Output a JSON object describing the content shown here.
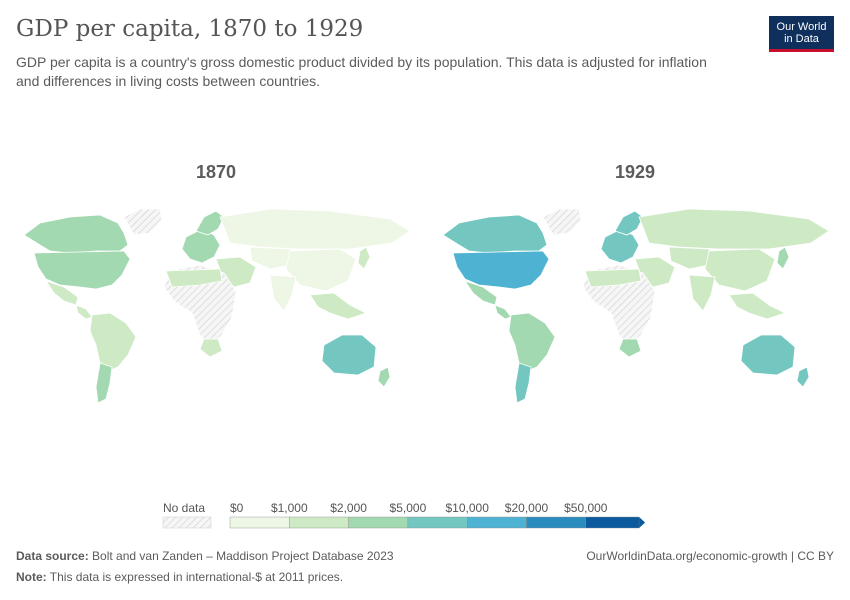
{
  "title": "GDP per capita, 1870 to 1929",
  "subtitle": "GDP per capita is a country's gross domestic product divided by its population. This data is adjusted for inflation and differences in living costs between countries.",
  "logo": {
    "line1": "Our World",
    "line2": "in Data"
  },
  "maps": [
    {
      "year": "1870",
      "regions": [
        {
          "name": "North America",
          "bin": 2
        },
        {
          "name": "USA",
          "bin": 2
        },
        {
          "name": "Mexico",
          "bin": 1
        },
        {
          "name": "Central America",
          "bin": 1
        },
        {
          "name": "South America",
          "bin": 1
        },
        {
          "name": "Argentina",
          "bin": 2
        },
        {
          "name": "Greenland",
          "bin": -1
        },
        {
          "name": "Western Europe",
          "bin": 2
        },
        {
          "name": "Scandinavia",
          "bin": 2
        },
        {
          "name": "Russia",
          "bin": 0
        },
        {
          "name": "Middle East",
          "bin": 1
        },
        {
          "name": "Africa",
          "bin": -1
        },
        {
          "name": "North Africa",
          "bin": 1
        },
        {
          "name": "South Africa",
          "bin": 1
        },
        {
          "name": "Central Asia",
          "bin": 0
        },
        {
          "name": "China",
          "bin": 0
        },
        {
          "name": "India",
          "bin": 0
        },
        {
          "name": "Southeast Asia",
          "bin": 1
        },
        {
          "name": "Japan",
          "bin": 1
        },
        {
          "name": "Australia",
          "bin": 3
        },
        {
          "name": "New Zealand",
          "bin": 2
        }
      ]
    },
    {
      "year": "1929",
      "regions": [
        {
          "name": "North America",
          "bin": 3
        },
        {
          "name": "USA",
          "bin": 4
        },
        {
          "name": "Mexico",
          "bin": 2
        },
        {
          "name": "Central America",
          "bin": 2
        },
        {
          "name": "South America",
          "bin": 2
        },
        {
          "name": "Argentina",
          "bin": 3
        },
        {
          "name": "Greenland",
          "bin": -1
        },
        {
          "name": "Western Europe",
          "bin": 3
        },
        {
          "name": "Scandinavia",
          "bin": 3
        },
        {
          "name": "Russia",
          "bin": 1
        },
        {
          "name": "Middle East",
          "bin": 1
        },
        {
          "name": "Africa",
          "bin": -1
        },
        {
          "name": "North Africa",
          "bin": 1
        },
        {
          "name": "South Africa",
          "bin": 2
        },
        {
          "name": "Central Asia",
          "bin": 1
        },
        {
          "name": "China",
          "bin": 1
        },
        {
          "name": "India",
          "bin": 1
        },
        {
          "name": "Southeast Asia",
          "bin": 1
        },
        {
          "name": "Japan",
          "bin": 2
        },
        {
          "name": "Australia",
          "bin": 3
        },
        {
          "name": "New Zealand",
          "bin": 3
        }
      ]
    }
  ],
  "legend": {
    "no_data_label": "No data",
    "ticks": [
      "$0",
      "$1,000",
      "$2,000",
      "$5,000",
      "$10,000",
      "$20,000",
      "$50,000"
    ],
    "colors": [
      "#eef7e6",
      "#cdeac4",
      "#a3d9b1",
      "#74c7c1",
      "#4eb3d3",
      "#2b8cbe",
      "#0c5a9e"
    ],
    "no_data_color": "#e8e8e8"
  },
  "footer": {
    "source_label": "Data source:",
    "source_text": "Bolt and van Zanden – Maddison Project Database 2023",
    "note_label": "Note:",
    "note_text": "This data is expressed in international-$ at 2011 prices.",
    "right": "OurWorldinData.org/economic-growth | CC BY"
  }
}
